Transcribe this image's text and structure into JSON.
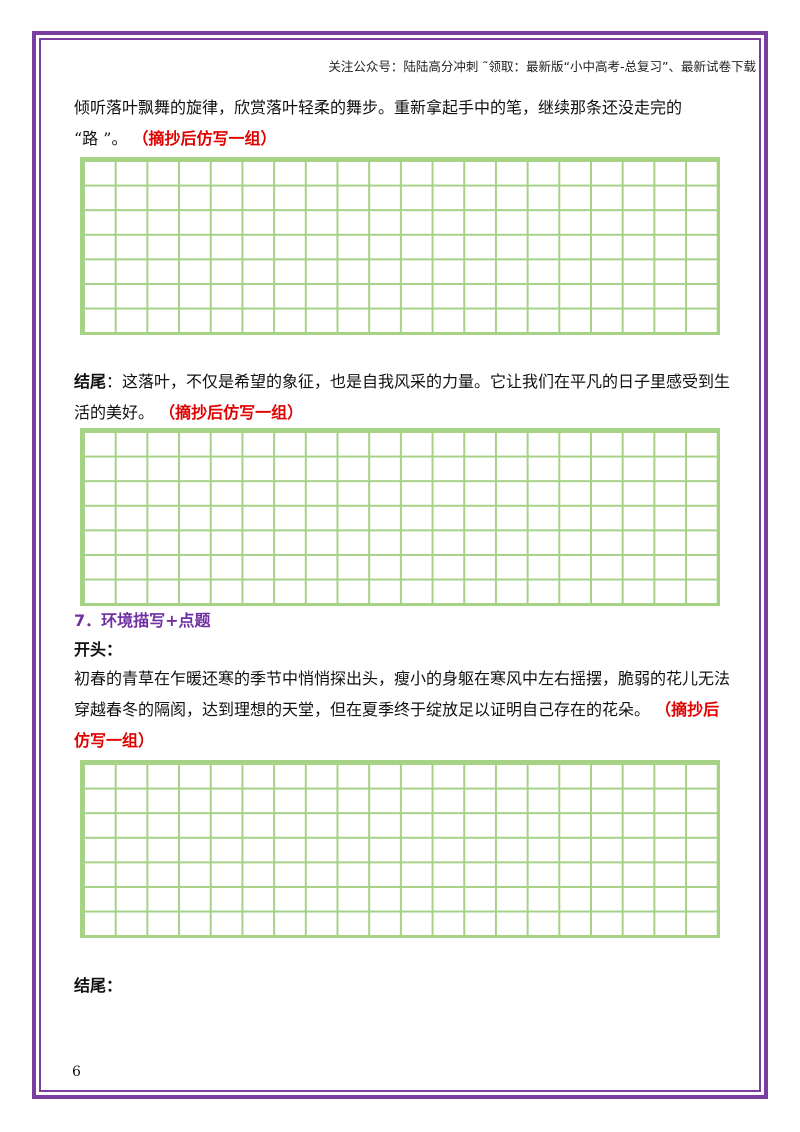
{
  "header": {
    "note": "关注公众号：陆陆高分冲刺 ˜领取：最新版“小中高考-总复习”、最新试卷下载"
  },
  "block1": {
    "line1": "倾听落叶飘舞的旋律，欣赏落叶轻柔的舞步。重新拿起手中的笔，继续那条还没走完的",
    "line2": "“路 ”。",
    "instruction": "（摘抄后仿写一组）"
  },
  "ending1": {
    "label": "结尾",
    "text": "：这落叶，不仅是希望的象征，也是自我风采的力量。它让我们在平凡的日子里感受到生活的美好。",
    "instruction": "（摘抄后仿写一组）"
  },
  "section7": {
    "heading": "7．环境描写+点题",
    "opening_label": "开头：",
    "opening_text": "初春的青草在乍暖还寒的季节中悄悄探出头，瘦小的身躯在寒风中左右摇摆，脆弱的花儿无法穿越春冬的隔阂，达到理想的天堂，但在夏季终于绽放足以证明自己存在的花朵。",
    "instruction": "（摘抄后仿写一组）",
    "ending_label": "结尾："
  },
  "footer": {
    "page_number": "6"
  }
}
